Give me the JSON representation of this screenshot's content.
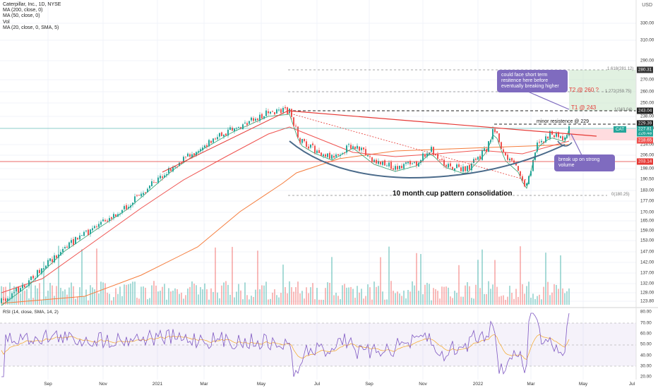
{
  "legend": {
    "title": "Caterpillar, Inc., 1D, NYSE",
    "ma200": "MA (200, close, 0)",
    "ma50": "MA (50, close, 0)",
    "vol": "Vol",
    "ma20": "MA (20, close, 0, SMA, 5)"
  },
  "currency": "USD",
  "rsi_label": "RSI (14, close, SMA, 14, 2)",
  "y_ticks": [
    "330.00",
    "310.00",
    "290.00",
    "270.00",
    "260.00",
    "250.00",
    "238.00",
    "225.00",
    "214.00",
    "206.00",
    "198.00",
    "190.50",
    "183.00",
    "177.00",
    "170.00",
    "165.00",
    "159.00",
    "153.00",
    "147.00",
    "142.00",
    "137.00",
    "132.00",
    "128.00",
    "123.80"
  ],
  "rsi_ticks": [
    "80.00",
    "70.00",
    "60.00",
    "50.00",
    "40.00",
    "30.00",
    "20.00"
  ],
  "price_tags": [
    {
      "text": "280.31",
      "color": "#333333"
    },
    {
      "text": "243.04",
      "color": "#222222"
    },
    {
      "text": "229.39",
      "color": "#222222"
    },
    {
      "text": "226.48",
      "color": "#26a69a"
    },
    {
      "text": "227.81",
      "color": "#26a69a"
    },
    {
      "text": "218.65",
      "color": "#ef5350"
    },
    {
      "text": "203.14",
      "color": "#e53935"
    }
  ],
  "symbol_tag": "CAT",
  "x_ticks": [
    "Sep",
    "Nov",
    "2021",
    "Mar",
    "May",
    "Jul",
    "Sep",
    "Nov",
    "2022",
    "Mar",
    "May",
    "Jul"
  ],
  "fib_labels": [
    "1.618(281.12)",
    "1.272(259.75)",
    "1(243.04)",
    "0(180.25)"
  ],
  "annotations": {
    "cup": "10 month cup pattern consolidation",
    "minor": "minor resistence @ 229",
    "t1": "T1 @ 243",
    "t2": "T2 @ 260 ?",
    "callout1": "could face short term resitence here before eventually breaking higher",
    "callout2": "break up on strong volume"
  },
  "colors": {
    "up": "#26a69a",
    "down": "#ef5350",
    "ma200": "#f57c3c",
    "ma50": "#ef5350",
    "ma20": "#2e9e6a",
    "cup": "#4a6a8a",
    "rsi": "#7e57c2"
  }
}
